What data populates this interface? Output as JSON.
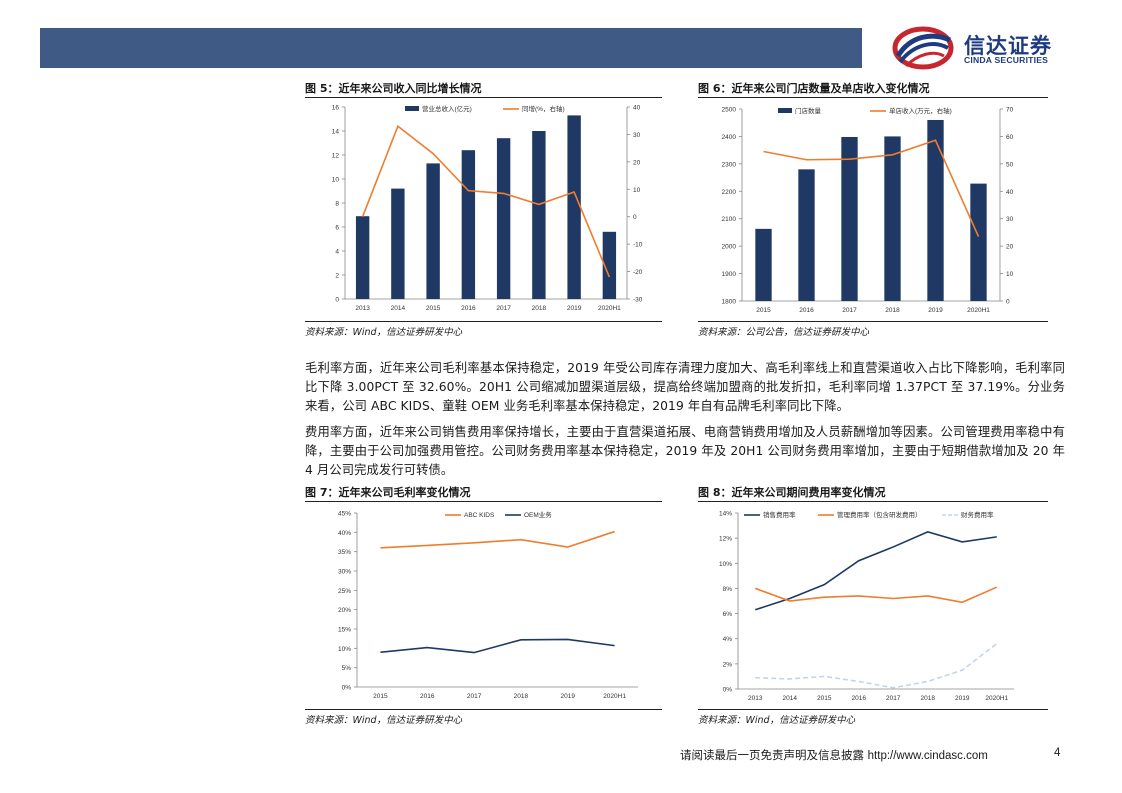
{
  "header": {
    "logo_cn": "信达证券",
    "logo_en": "CINDA SECURITIES",
    "colors": {
      "banner": "#3f5a85",
      "logo_blue": "#1e3b80",
      "logo_red": "#c8262e"
    }
  },
  "figures": [
    {
      "title": "图 5：近年来公司收入同比增长情况",
      "source": "资料来源：Wind，信达证券研发中心",
      "chart_data": {
        "type": "bar+line",
        "categories": [
          "2013",
          "2014",
          "2015",
          "2016",
          "2017",
          "2018",
          "2019",
          "2020H1"
        ],
        "series": [
          {
            "name": "营业总收入(亿元)",
            "kind": "bar",
            "axis": "left",
            "color": "#1f3864",
            "values": [
              6.9,
              9.2,
              11.3,
              12.4,
              13.4,
              14.0,
              15.3,
              5.6
            ]
          },
          {
            "name": "同增(%，右轴)",
            "kind": "line",
            "axis": "right",
            "color": "#ed7d31",
            "values": [
              0,
              33,
              23,
              9.5,
              8.5,
              4.5,
              9,
              -22
            ]
          }
        ],
        "ylim_left": [
          0,
          16
        ],
        "yticks_left": [
          0,
          2,
          4,
          6,
          8,
          10,
          12,
          14,
          16
        ],
        "ylim_right": [
          -30,
          40
        ],
        "yticks_right": [
          -30,
          -20,
          -10,
          0,
          10,
          20,
          30,
          40
        ]
      }
    },
    {
      "title": "图 6：近年来公司门店数量及单店收入变化情况",
      "source": "资料来源：公司公告，信达证券研发中心",
      "chart_data": {
        "type": "bar+line",
        "categories": [
          "2015",
          "2016",
          "2017",
          "2018",
          "2019",
          "2020H1"
        ],
        "series": [
          {
            "name": "门店数量",
            "kind": "bar",
            "axis": "left",
            "color": "#1f3864",
            "values": [
              2063,
              2280,
              2398,
              2400,
              2460,
              2228
            ]
          },
          {
            "name": "单店收入(万元，右轴)",
            "kind": "line",
            "axis": "right",
            "color": "#ed7d31",
            "values": [
              54.5,
              51.5,
              51.7,
              53.3,
              58.6,
              23.5
            ]
          }
        ],
        "ylim_left": [
          1800,
          2500
        ],
        "yticks_left": [
          1800,
          1900,
          2000,
          2100,
          2200,
          2300,
          2400,
          2500
        ],
        "ylim_right": [
          0,
          70
        ],
        "yticks_right": [
          0,
          10,
          20,
          30,
          40,
          50,
          60,
          70
        ]
      }
    },
    {
      "title": "图 7：近年来公司毛利率变化情况",
      "source": "资料来源：Wind，信达证券研发中心",
      "chart_data": {
        "type": "line",
        "categories": [
          "2015",
          "2016",
          "2017",
          "2018",
          "2019",
          "2020H1"
        ],
        "series": [
          {
            "name": "ABC KIDS",
            "color": "#ed7d31",
            "values": [
              36.0,
              36.6,
              37.3,
              38.1,
              36.2,
              40.2
            ]
          },
          {
            "name": "OEM业务",
            "color": "#1f3864",
            "values": [
              9.0,
              10.2,
              8.9,
              12.2,
              12.3,
              10.7
            ]
          }
        ],
        "ylim": [
          0,
          45
        ],
        "yticks": [
          "0%",
          "5%",
          "10%",
          "15%",
          "20%",
          "25%",
          "30%",
          "35%",
          "40%",
          "45%"
        ]
      }
    },
    {
      "title": "图 8：近年来公司期间费用率变化情况",
      "source": "资料来源：Wind，信达证券研发中心",
      "chart_data": {
        "type": "line",
        "categories": [
          "2013",
          "2014",
          "2015",
          "2016",
          "2017",
          "2018",
          "2019",
          "2020H1"
        ],
        "series": [
          {
            "name": "销售费用率",
            "color": "#1f3864",
            "dash": false,
            "values": [
              6.3,
              7.2,
              8.3,
              10.2,
              11.3,
              12.5,
              11.7,
              12.1
            ]
          },
          {
            "name": "管理费用率（包含研发费用）",
            "color": "#ed7d31",
            "dash": false,
            "values": [
              8.0,
              7.0,
              7.3,
              7.4,
              7.2,
              7.4,
              6.9,
              8.1
            ]
          },
          {
            "name": "财务费用率",
            "color": "#c5d3e8",
            "dash": true,
            "values": [
              0.9,
              0.8,
              1.0,
              0.6,
              0.1,
              0.6,
              1.5,
              3.6
            ]
          }
        ],
        "ylim": [
          0,
          14
        ],
        "yticks": [
          "0%",
          "2%",
          "4%",
          "6%",
          "8%",
          "10%",
          "12%",
          "14%"
        ]
      }
    }
  ],
  "paragraphs": [
    "毛利率方面，近年来公司毛利率基本保持稳定，2019 年受公司库存清理力度加大、高毛利率线上和直营渠道收入占比下降影响，毛利率同比下降 3.00PCT 至 32.60%。20H1 公司缩减加盟渠道层级，提高给终端加盟商的批发折扣，毛利率同增 1.37PCT 至 37.19%。分业务来看，公司 ABC KIDS、童鞋 OEM 业务毛利率基本保持稳定，2019 年自有品牌毛利率同比下降。",
    "费用率方面，近年来公司销售费用率保持增长，主要由于直营渠道拓展、电商营销费用增加及人员薪酬增加等因素。公司管理费用率稳中有降，主要由于公司加强费用管控。公司财务费用率基本保持稳定，2019 年及 20H1 公司财务费用率增加，主要由于短期借款增加及 20 年 4 月公司完成发行可转债。"
  ],
  "footer": {
    "note": "请阅读最后一页免责声明及信息披露 ",
    "url": "http://www.cindasc.com",
    "page": "4"
  }
}
